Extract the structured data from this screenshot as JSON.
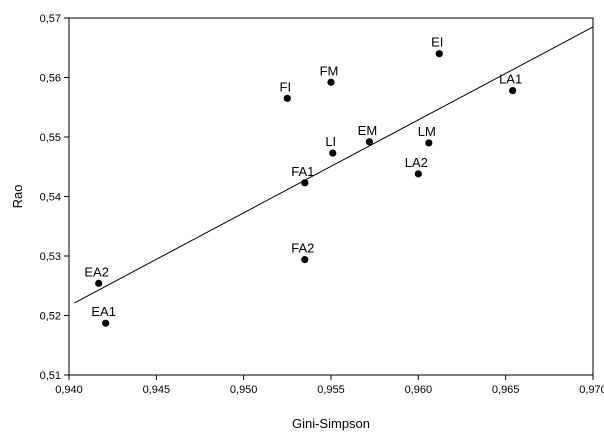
{
  "chart_data": {
    "type": "scatter",
    "xlabel": "Gini-Simpson",
    "ylabel": "Rao",
    "xlim": [
      0.94,
      0.97
    ],
    "ylim": [
      0.51,
      0.57
    ],
    "x_ticks": [
      "0,940",
      "0,945",
      "0,950",
      "0,955",
      "0,960",
      "0,965",
      "0,970"
    ],
    "y_ticks": [
      "0,51",
      "0,52",
      "0,53",
      "0,54",
      "0,55",
      "0,56",
      "0,57"
    ],
    "x_tick_values": [
      0.94,
      0.945,
      0.95,
      0.955,
      0.96,
      0.965,
      0.97
    ],
    "y_tick_values": [
      0.51,
      0.52,
      0.53,
      0.54,
      0.55,
      0.56,
      0.57
    ],
    "points": [
      {
        "label": "EI",
        "x": 0.9612,
        "y": 0.564
      },
      {
        "label": "FM",
        "x": 0.955,
        "y": 0.5592
      },
      {
        "label": "FI",
        "x": 0.9525,
        "y": 0.5565
      },
      {
        "label": "LA1",
        "x": 0.9654,
        "y": 0.5578
      },
      {
        "label": "EM",
        "x": 0.9572,
        "y": 0.5492
      },
      {
        "label": "LM",
        "x": 0.9606,
        "y": 0.549
      },
      {
        "label": "LI",
        "x": 0.9551,
        "y": 0.5473
      },
      {
        "label": "LA2",
        "x": 0.96,
        "y": 0.5438
      },
      {
        "label": "FA1",
        "x": 0.9535,
        "y": 0.5423
      },
      {
        "label": "FA2",
        "x": 0.9535,
        "y": 0.5294
      },
      {
        "label": "EA2",
        "x": 0.9417,
        "y": 0.5254
      },
      {
        "label": "EA1",
        "x": 0.9421,
        "y": 0.5187
      }
    ],
    "trendline": {
      "x": [
        0.9403,
        0.97
      ],
      "y": [
        0.5221,
        0.5685
      ]
    },
    "grid": false,
    "legend": "none"
  }
}
